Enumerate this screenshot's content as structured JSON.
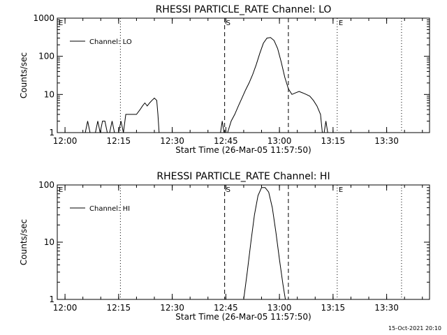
{
  "chart_data": [
    {
      "type": "line",
      "title": "RHESSI PARTICLE_RATE Channel: LO",
      "xlabel": "Start Time (26-Mar-05 11:57:50)",
      "ylabel": "Counts/sec",
      "yscale": "log",
      "ylim": [
        1,
        1000
      ],
      "yticks": [
        1,
        10,
        100,
        1000
      ],
      "ytick_labels": [
        "1",
        "10",
        "100",
        "1000"
      ],
      "xlim": [
        "11:57:50",
        "13:42:00"
      ],
      "xticks": [
        "12:00",
        "12:15",
        "12:30",
        "12:45",
        "13:00",
        "13:15",
        "13:30"
      ],
      "legend": {
        "position": "top-left",
        "label": "Channel: LO"
      },
      "markers": [
        {
          "label": "E",
          "time": "11:57:50",
          "style": "dotted"
        },
        {
          "label": "",
          "time": "12:15:30",
          "style": "dotted"
        },
        {
          "label": "S",
          "time": "12:44:40",
          "style": "dashed"
        },
        {
          "label": "",
          "time": "13:02:30",
          "style": "dashed"
        },
        {
          "label": "E",
          "time": "13:16:10",
          "style": "dotted"
        },
        {
          "label": "",
          "time": "13:34:10",
          "style": "dotted"
        }
      ],
      "series": [
        {
          "name": "Channel: LO",
          "segments": [
            [
              [
                "12:05:40",
                1
              ],
              [
                "12:06:20",
                2
              ],
              [
                "12:07:00",
                1
              ]
            ],
            [
              [
                "12:08:30",
                1
              ],
              [
                "12:09:10",
                2
              ],
              [
                "12:09:50",
                1
              ],
              [
                "12:10:30",
                2
              ],
              [
                "12:11:10",
                2
              ],
              [
                "12:11:50",
                1
              ],
              [
                "12:12:30",
                1
              ],
              [
                "12:13:10",
                2
              ],
              [
                "12:13:50",
                1
              ]
            ],
            [
              [
                "12:15:00",
                1
              ],
              [
                "12:15:40",
                2
              ],
              [
                "12:16:20",
                1
              ],
              [
                "12:17:00",
                3
              ],
              [
                "12:18:00",
                3
              ],
              [
                "12:19:00",
                3
              ],
              [
                "12:20:00",
                3
              ],
              [
                "12:21:00",
                4
              ],
              [
                "12:21:40",
                5
              ],
              [
                "12:22:20",
                6
              ],
              [
                "12:23:00",
                5
              ],
              [
                "12:23:40",
                6
              ],
              [
                "12:24:20",
                7
              ],
              [
                "12:25:00",
                8
              ],
              [
                "12:25:40",
                7
              ],
              [
                "12:26:00",
                3
              ],
              [
                "12:26:20",
                1
              ]
            ],
            [
              [
                "12:43:30",
                1
              ],
              [
                "12:44:00",
                2
              ],
              [
                "12:44:30",
                1
              ]
            ],
            [
              [
                "12:45:30",
                1
              ],
              [
                "12:46:30",
                2
              ],
              [
                "12:47:30",
                3
              ],
              [
                "12:48:30",
                5
              ],
              [
                "12:49:30",
                8
              ],
              [
                "12:50:30",
                13
              ],
              [
                "12:51:30",
                20
              ],
              [
                "12:52:30",
                33
              ],
              [
                "12:53:30",
                60
              ],
              [
                "12:54:30",
                120
              ],
              [
                "12:55:30",
                220
              ],
              [
                "12:56:30",
                300
              ],
              [
                "12:57:30",
                310
              ],
              [
                "12:58:30",
                260
              ],
              [
                "12:59:30",
                160
              ],
              [
                "13:00:30",
                70
              ],
              [
                "13:01:30",
                28
              ],
              [
                "13:02:30",
                14
              ],
              [
                "13:03:30",
                10
              ],
              [
                "13:04:30",
                11
              ],
              [
                "13:05:30",
                12
              ],
              [
                "13:06:30",
                11
              ],
              [
                "13:07:30",
                10
              ],
              [
                "13:08:30",
                9
              ],
              [
                "13:09:30",
                7
              ],
              [
                "13:10:30",
                5
              ],
              [
                "13:11:30",
                3
              ],
              [
                "13:12:00",
                1
              ]
            ],
            [
              [
                "13:12:30",
                1
              ],
              [
                "13:13:00",
                2
              ],
              [
                "13:13:30",
                1
              ]
            ]
          ]
        }
      ]
    },
    {
      "type": "line",
      "title": "RHESSI PARTICLE_RATE Channel: HI",
      "xlabel": "Start Time (26-Mar-05 11:57:50)",
      "ylabel": "Counts/sec",
      "yscale": "log",
      "ylim": [
        1,
        100
      ],
      "yticks": [
        1,
        10,
        100
      ],
      "ytick_labels": [
        "1",
        "10",
        "100"
      ],
      "xlim": [
        "11:57:50",
        "13:42:00"
      ],
      "xticks": [
        "12:00",
        "12:15",
        "12:30",
        "12:45",
        "13:00",
        "13:15",
        "13:30"
      ],
      "legend": {
        "position": "top-left",
        "label": "Channel: HI"
      },
      "markers": [
        {
          "label": "E",
          "time": "11:57:50",
          "style": "dotted"
        },
        {
          "label": "",
          "time": "12:15:30",
          "style": "dotted"
        },
        {
          "label": "S",
          "time": "12:44:40",
          "style": "dashed"
        },
        {
          "label": "",
          "time": "13:02:30",
          "style": "dashed"
        },
        {
          "label": "E",
          "time": "13:16:10",
          "style": "dotted"
        },
        {
          "label": "",
          "time": "13:34:10",
          "style": "dotted"
        }
      ],
      "series": [
        {
          "name": "Channel: HI",
          "segments": [
            [
              [
                "12:50:00",
                1
              ],
              [
                "12:51:00",
                3
              ],
              [
                "12:52:00",
                10
              ],
              [
                "12:53:00",
                30
              ],
              [
                "12:54:00",
                65
              ],
              [
                "12:55:00",
                90
              ],
              [
                "12:56:00",
                90
              ],
              [
                "12:57:00",
                75
              ],
              [
                "12:58:00",
                40
              ],
              [
                "12:59:00",
                15
              ],
              [
                "13:00:00",
                5
              ],
              [
                "13:01:00",
                1.8
              ],
              [
                "13:01:40",
                1
              ]
            ]
          ]
        }
      ]
    }
  ],
  "footer": {
    "timestamp": "15-Oct-2021 20:10"
  }
}
